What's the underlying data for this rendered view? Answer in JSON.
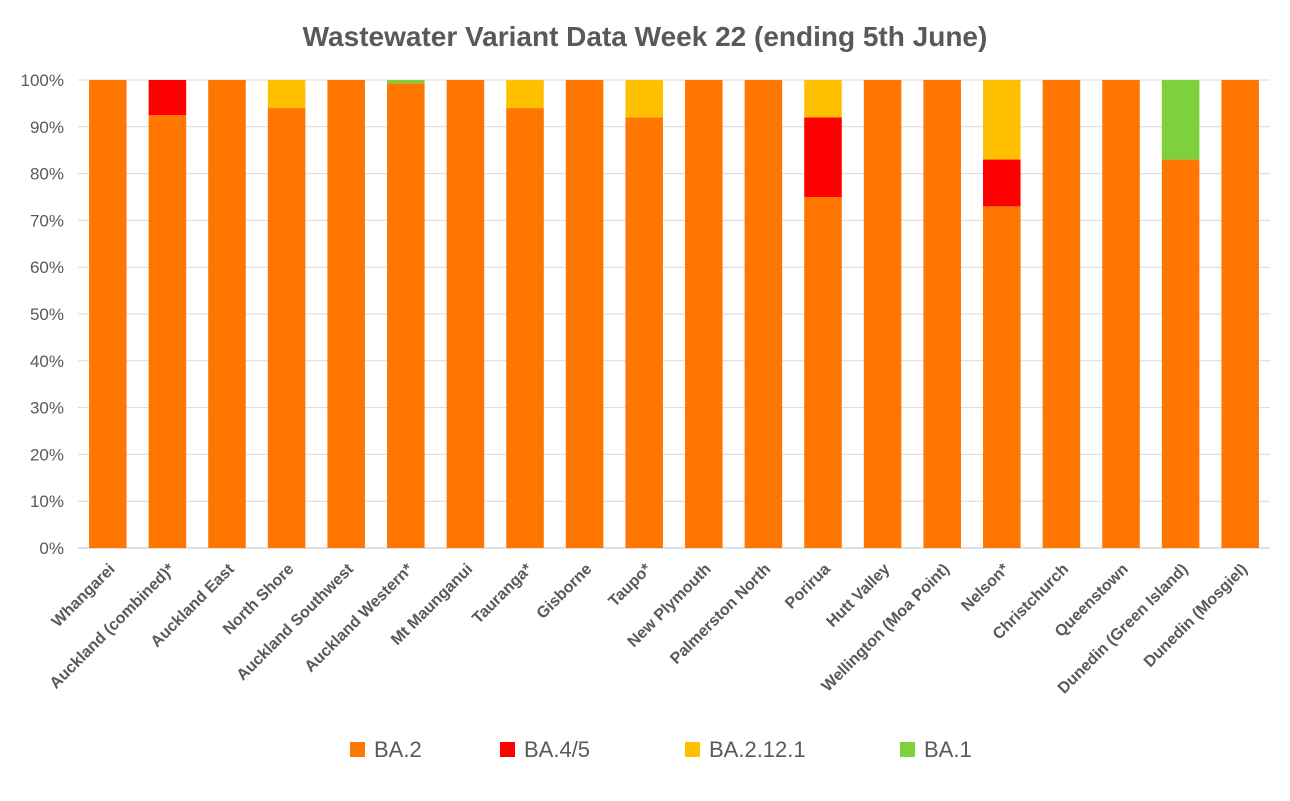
{
  "chart_data": {
    "type": "bar",
    "stacked": true,
    "title": "Wastewater Variant Data Week 22 (ending 5th June)",
    "xlabel": "",
    "ylabel": "",
    "ylim": [
      0,
      100
    ],
    "y_ticks": [
      "0%",
      "10%",
      "20%",
      "30%",
      "40%",
      "50%",
      "60%",
      "70%",
      "80%",
      "90%",
      "100%"
    ],
    "grid": true,
    "legend_position": "bottom",
    "categories": [
      "Whangarei",
      "Auckland (combined)*",
      "Auckland East",
      "North Shore",
      "Auckland Southwest",
      "Auckland Western*",
      "Mt Maunganui",
      "Tauranga*",
      "Gisborne",
      "Taupo*",
      "New Plymouth",
      "Palmerston North",
      "Porirua",
      "Hutt Valley",
      "Wellington (Moa Point)",
      "Nelson*",
      "Christchurch",
      "Queenstown",
      "Dunedin (Green Island)",
      "Dunedin (Mosgiel)"
    ],
    "series": [
      {
        "name": "BA.2",
        "color": "#FF7700",
        "values": [
          100,
          92.5,
          100,
          94,
          100,
          99.3,
          100,
          94,
          100,
          92,
          100,
          100,
          75,
          100,
          100,
          73,
          100,
          100,
          83,
          100
        ]
      },
      {
        "name": "BA.4/5",
        "color": "#FF0000",
        "values": [
          0,
          7.5,
          0,
          0,
          0,
          0,
          0,
          0,
          0,
          0,
          0,
          0,
          17,
          0,
          0,
          10,
          0,
          0,
          0,
          0
        ]
      },
      {
        "name": "BA.2.12.1",
        "color": "#FFC000",
        "values": [
          0,
          0,
          0,
          6,
          0,
          0,
          0,
          6,
          0,
          8,
          0,
          0,
          8,
          0,
          0,
          17,
          0,
          0,
          0,
          0
        ]
      },
      {
        "name": "BA.1",
        "color": "#7FD13B",
        "values": [
          0,
          0,
          0,
          0,
          0,
          0.7,
          0,
          0,
          0,
          0,
          0,
          0,
          0,
          0,
          0,
          0,
          0,
          0,
          17,
          0
        ]
      }
    ]
  }
}
